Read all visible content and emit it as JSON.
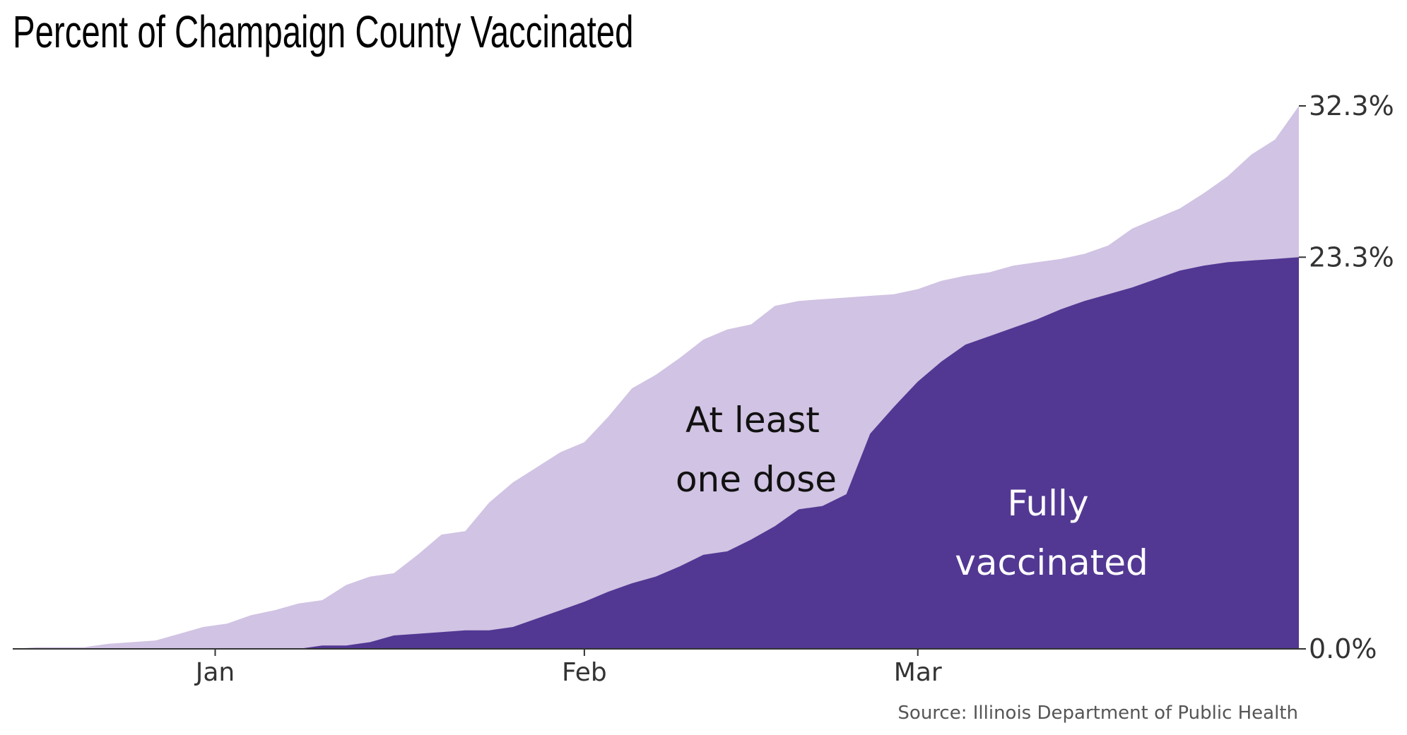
{
  "title": "Percent of Champaign County Vaccinated",
  "source": "Source: Illinois Department of Public Health",
  "chart_data": {
    "type": "area",
    "title": "Percent of Champaign County Vaccinated",
    "x_ticks": [
      "Jan",
      "Feb",
      "Mar"
    ],
    "y_ticks": [
      "0.0%",
      "23.3%",
      "32.3%"
    ],
    "ylim": [
      0,
      32.3
    ],
    "grid": false,
    "annotations": [
      {
        "series": "at_least_one_dose",
        "lines": [
          "At least",
          "one dose"
        ]
      },
      {
        "series": "fully_vaccinated",
        "lines": [
          "Fully",
          "vaccinated"
        ]
      }
    ],
    "colors": {
      "at_least_one_dose": "#d1c3e3",
      "fully_vaccinated": "#523893"
    },
    "x": [
      "Dec 15",
      "Dec 17",
      "Dec 19",
      "Dec 21",
      "Dec 23",
      "Dec 25",
      "Dec 27",
      "Dec 29",
      "Dec 31",
      "Jan 2",
      "Jan 4",
      "Jan 6",
      "Jan 8",
      "Jan 10",
      "Jan 12",
      "Jan 14",
      "Jan 16",
      "Jan 18",
      "Jan 20",
      "Jan 22",
      "Jan 24",
      "Jan 26",
      "Jan 28",
      "Jan 30",
      "Feb 1",
      "Feb 3",
      "Feb 5",
      "Feb 7",
      "Feb 9",
      "Feb 11",
      "Feb 13",
      "Feb 15",
      "Feb 17",
      "Feb 19",
      "Feb 21",
      "Feb 23",
      "Feb 25",
      "Feb 27",
      "Mar 1",
      "Mar 3",
      "Mar 5",
      "Mar 7",
      "Mar 9",
      "Mar 11",
      "Mar 13",
      "Mar 15",
      "Mar 17",
      "Mar 19",
      "Mar 21",
      "Mar 23",
      "Mar 25",
      "Mar 27",
      "Mar 29",
      "Mar 31",
      "Apr 2"
    ],
    "series": [
      {
        "key": "at_least_one_dose",
        "values": [
          0,
          0.1,
          0.1,
          0.1,
          0.3,
          0.4,
          0.5,
          0.9,
          1.3,
          1.5,
          2.0,
          2.3,
          2.7,
          2.9,
          3.8,
          4.3,
          4.5,
          5.6,
          6.8,
          7.0,
          8.7,
          9.9,
          10.8,
          11.7,
          12.3,
          13.8,
          15.5,
          16.3,
          17.3,
          18.4,
          19.0,
          19.3,
          20.4,
          20.7,
          20.8,
          20.9,
          21.0,
          21.1,
          21.4,
          21.9,
          22.2,
          22.4,
          22.8,
          23.0,
          23.2,
          23.5,
          24.0,
          25.0,
          25.6,
          26.2,
          27.1,
          28.1,
          29.4,
          30.3,
          32.3
        ]
      },
      {
        "key": "fully_vaccinated",
        "values": [
          0,
          0,
          0,
          0,
          0,
          0,
          0,
          0,
          0,
          0,
          0,
          0,
          0,
          0.2,
          0.2,
          0.4,
          0.8,
          0.9,
          1.0,
          1.1,
          1.1,
          1.3,
          1.8,
          2.3,
          2.8,
          3.4,
          3.9,
          4.3,
          4.9,
          5.6,
          5.8,
          6.5,
          7.3,
          8.3,
          8.5,
          9.2,
          12.8,
          14.4,
          15.9,
          17.1,
          18.1,
          18.6,
          19.1,
          19.6,
          20.2,
          20.7,
          21.1,
          21.5,
          22.0,
          22.5,
          22.8,
          23.0,
          23.1,
          23.2,
          23.3
        ]
      }
    ]
  }
}
